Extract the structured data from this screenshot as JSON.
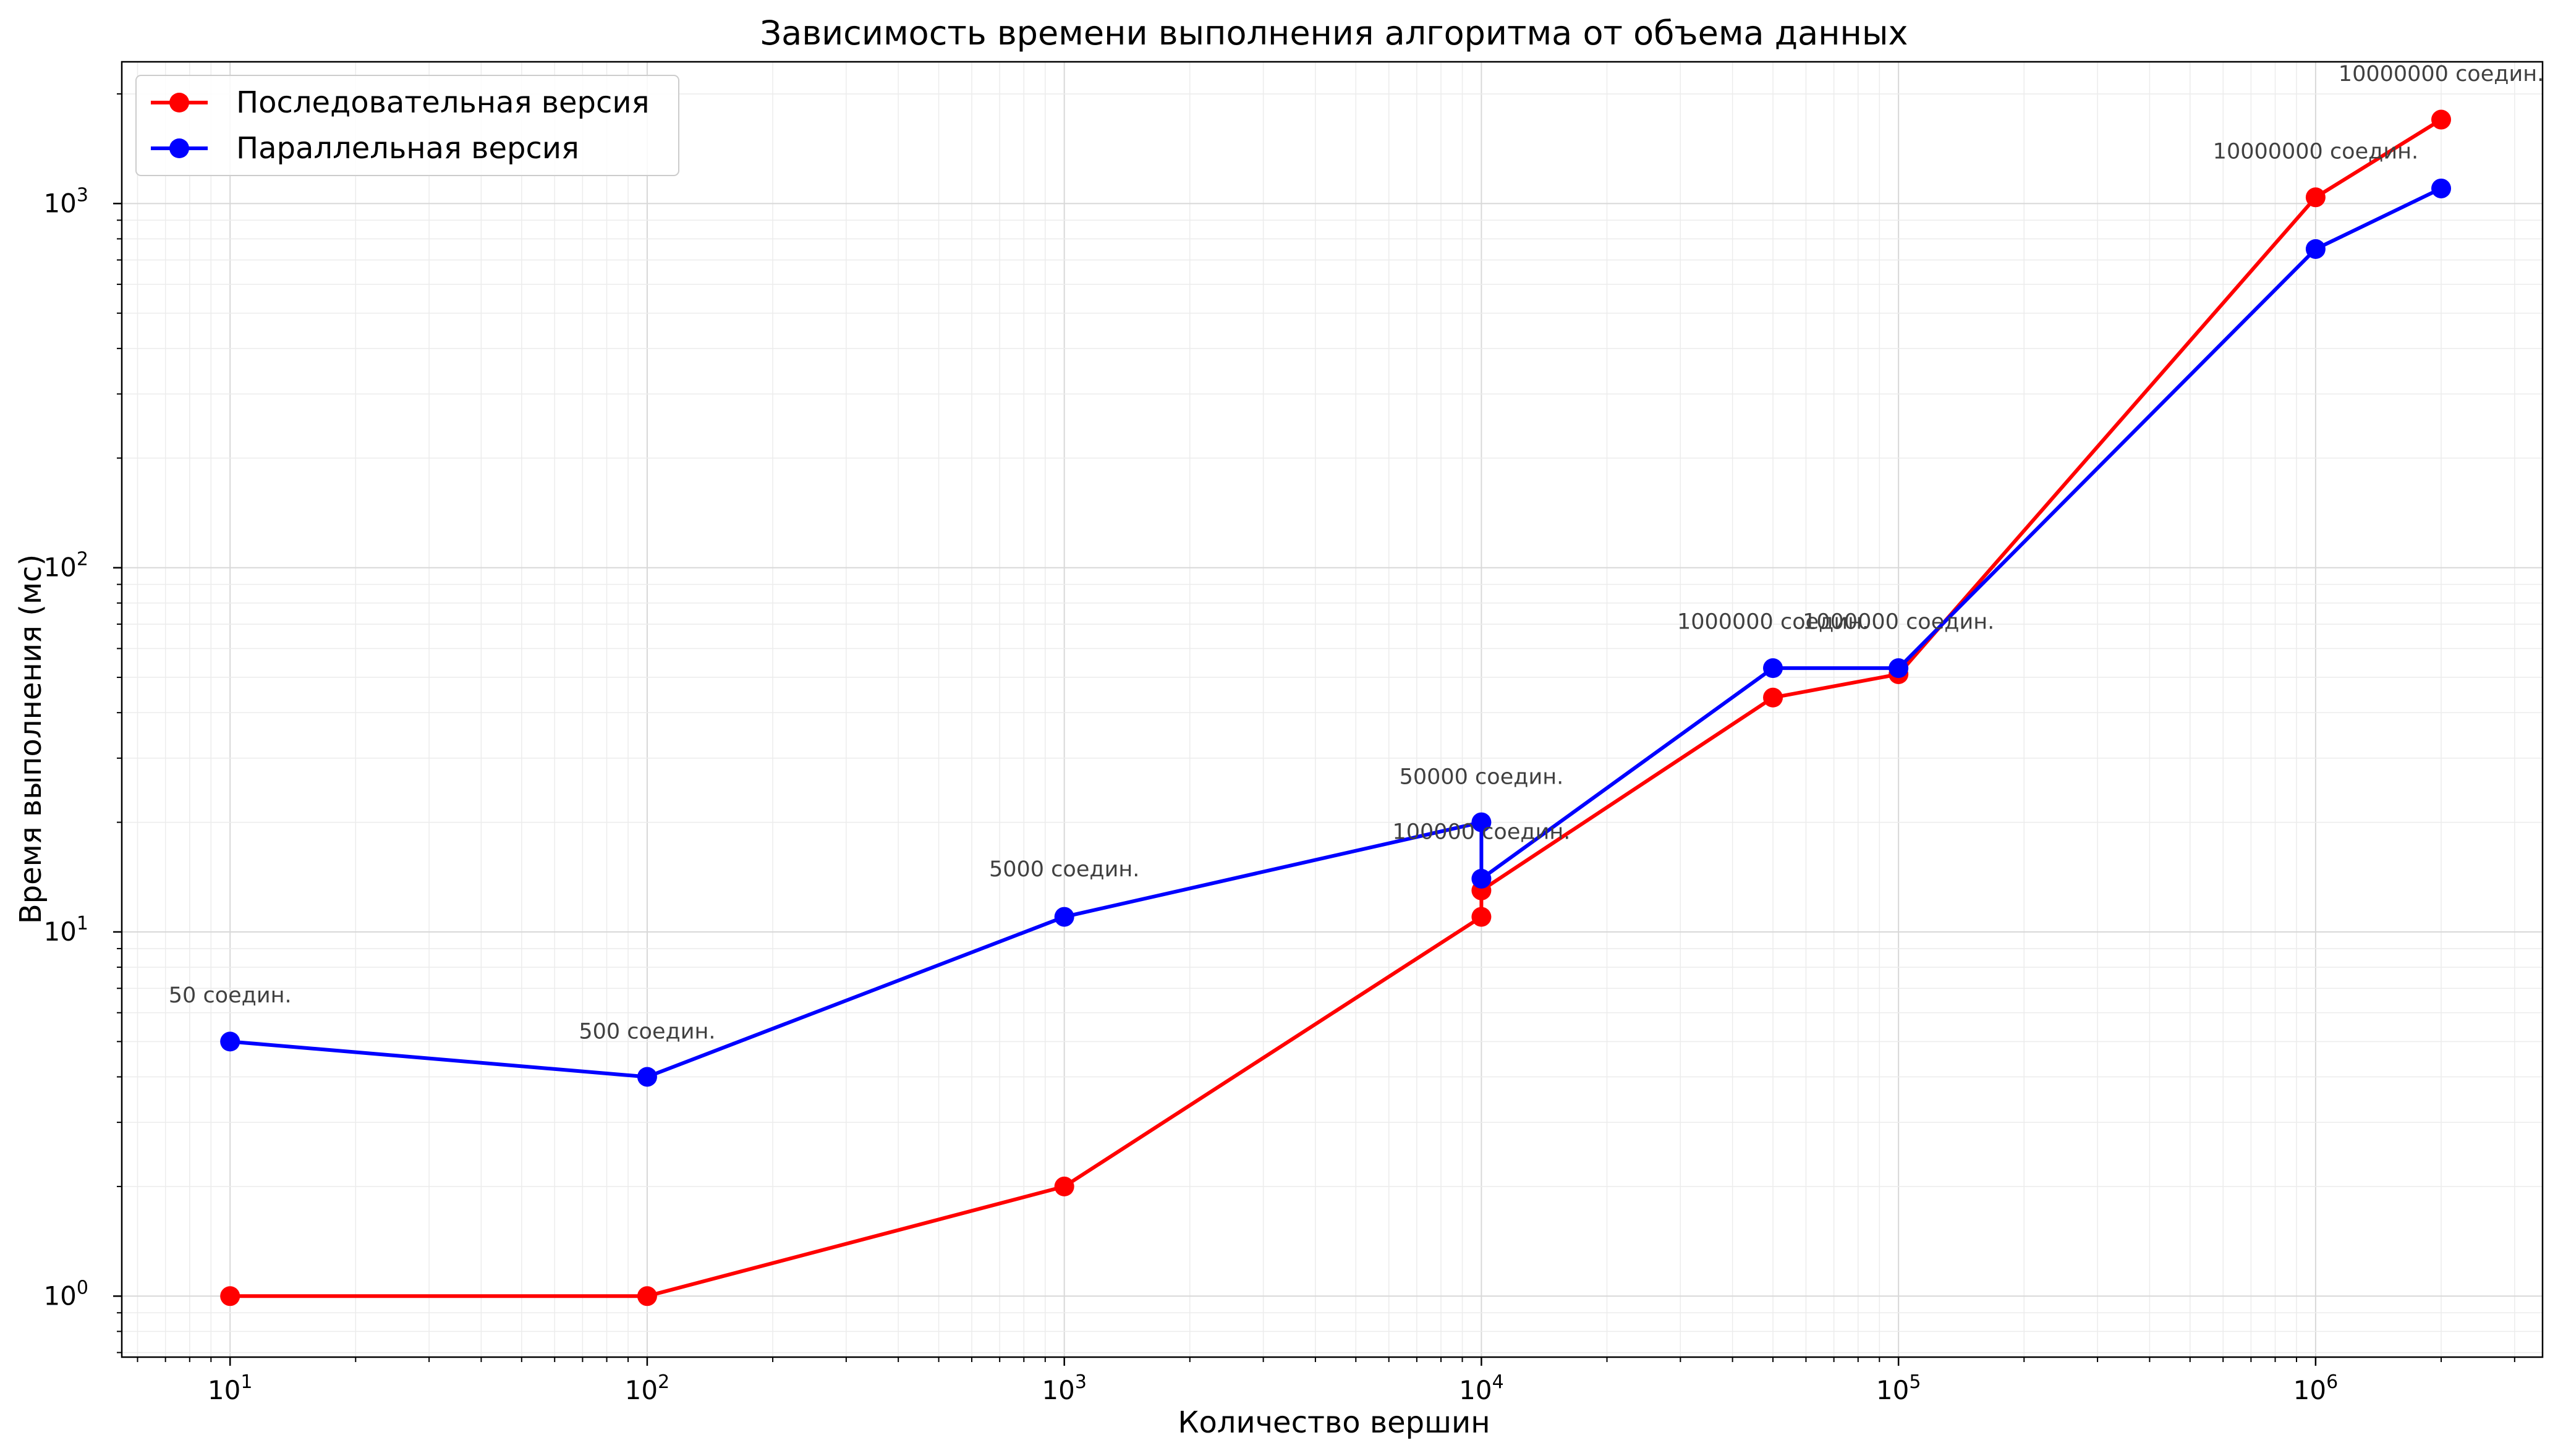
{
  "chart_data": {
    "type": "line",
    "title": "Зависимость времени выполнения алгоритма от объема данных",
    "xlabel": "Количество вершин",
    "ylabel": "Время выполнения (мс)",
    "xscale": "log",
    "yscale": "log",
    "xlim": [
      5.5,
      3500000
    ],
    "ylim": [
      0.68,
      2450
    ],
    "grid": true,
    "legend_position": "top-left",
    "x_ticks": [
      {
        "value": 10,
        "base": "10",
        "exp": "1"
      },
      {
        "value": 100,
        "base": "10",
        "exp": "2"
      },
      {
        "value": 1000,
        "base": "10",
        "exp": "3"
      },
      {
        "value": 10000,
        "base": "10",
        "exp": "4"
      },
      {
        "value": 100000,
        "base": "10",
        "exp": "5"
      },
      {
        "value": 1000000,
        "base": "10",
        "exp": "6"
      }
    ],
    "y_ticks": [
      {
        "value": 1,
        "base": "10",
        "exp": "0"
      },
      {
        "value": 10,
        "base": "10",
        "exp": "1"
      },
      {
        "value": 100,
        "base": "10",
        "exp": "2"
      },
      {
        "value": 1000,
        "base": "10",
        "exp": "3"
      }
    ],
    "series": [
      {
        "name": "Последовательная версия",
        "color": "#ff0000",
        "x": [
          10,
          100,
          1000,
          10000,
          10000,
          50000,
          100000,
          1000000,
          2000000
        ],
        "y": [
          1,
          1,
          2,
          11,
          13,
          44,
          51,
          1040,
          1700
        ]
      },
      {
        "name": "Параллельная версия",
        "color": "#0000ff",
        "x": [
          10,
          100,
          1000,
          10000,
          10000,
          50000,
          100000,
          1000000,
          2000000
        ],
        "y": [
          5,
          4,
          11,
          20,
          14,
          53,
          53,
          750,
          1100
        ]
      }
    ],
    "annotations": [
      {
        "text": "50 соедин.",
        "x": 10,
        "y": 6.4
      },
      {
        "text": "500 соедин.",
        "x": 100,
        "y": 5.1
      },
      {
        "text": "5000 соедин.",
        "x": 1000,
        "y": 14.2
      },
      {
        "text": "50000 соедин.",
        "x": 10000,
        "y": 25.5
      },
      {
        "text": "100000 соедин.",
        "x": 10000,
        "y": 18
      },
      {
        "text": "1000000 соедин.",
        "x": 50000,
        "y": 68
      },
      {
        "text": "1000000 соедин.",
        "x": 100000,
        "y": 68
      },
      {
        "text": "10000000 соедин.",
        "x": 1000000,
        "y": 1330
      },
      {
        "text": "10000000 соедин.",
        "x": 2000000,
        "y": 2170
      }
    ]
  }
}
